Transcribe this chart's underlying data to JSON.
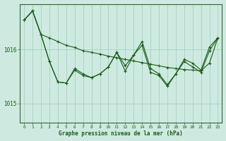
{
  "title": "Graphe pression niveau de la mer (hPa)",
  "background_color": "#ceeae0",
  "grid_color": "#a8d5c5",
  "line_color": "#1a5c1a",
  "spine_color": "#336633",
  "xlim": [
    -0.5,
    23.5
  ],
  "ylim": [
    1014.65,
    1016.85
  ],
  "yticks": [
    1015.0,
    1016.0
  ],
  "xticks": [
    0,
    1,
    2,
    3,
    4,
    5,
    6,
    7,
    8,
    9,
    10,
    11,
    12,
    13,
    14,
    15,
    16,
    17,
    18,
    19,
    20,
    21,
    22,
    23
  ],
  "series": [
    [
      1016.55,
      1016.72,
      1016.28,
      1016.22,
      1016.15,
      1016.08,
      1016.04,
      1015.98,
      1015.95,
      1015.92,
      1015.88,
      1015.85,
      1015.82,
      1015.79,
      1015.76,
      1015.73,
      1015.7,
      1015.67,
      1015.65,
      1015.63,
      1015.62,
      1015.61,
      1015.75,
      1016.22
    ],
    [
      1016.55,
      1016.72,
      1016.28,
      1015.78,
      1015.4,
      1015.38,
      1015.62,
      1015.52,
      1015.48,
      1015.55,
      1015.68,
      1015.95,
      1015.6,
      1015.9,
      1016.08,
      1015.58,
      1015.52,
      1015.32,
      1015.55,
      1015.78,
      1015.68,
      1015.58,
      1015.98,
      1016.22
    ],
    [
      1016.55,
      1016.72,
      1016.28,
      1015.78,
      1015.4,
      1015.38,
      1015.65,
      1015.55,
      1015.48,
      1015.55,
      1015.68,
      1015.95,
      1015.7,
      1015.9,
      1016.15,
      1015.65,
      1015.55,
      1015.35,
      1015.55,
      1015.82,
      1015.75,
      1015.62,
      1016.05,
      1016.22
    ]
  ]
}
